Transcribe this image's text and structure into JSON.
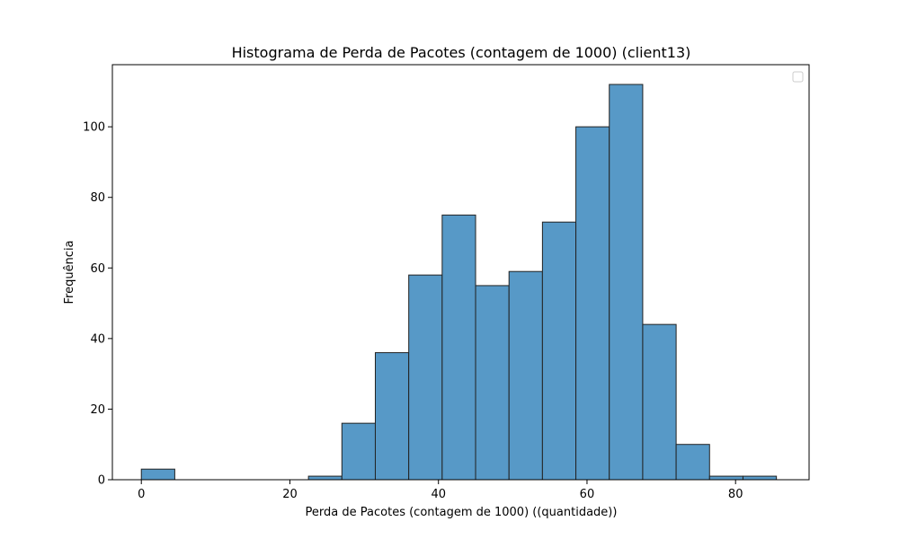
{
  "chart_data": {
    "type": "bar",
    "title": "Histograma de Perda de Pacotes (contagem de 1000) (client13)",
    "xlabel": "Perda de Pacotes (contagem de 1000) ((quantidade))",
    "ylabel": "Frequência",
    "xlim": [
      -3.9,
      89.9
    ],
    "ylim": [
      0,
      117.6
    ],
    "x_ticks": [
      0,
      20,
      40,
      60,
      80
    ],
    "y_ticks": [
      0,
      20,
      40,
      60,
      80,
      100
    ],
    "grid": false,
    "legend": "top-right (empty)",
    "bar_color": "#5799c7",
    "edge_color": "#222222",
    "bins": [
      {
        "start": 0.0,
        "end": 4.5,
        "count": 3
      },
      {
        "start": 4.5,
        "end": 9.0,
        "count": 0
      },
      {
        "start": 9.0,
        "end": 13.5,
        "count": 0
      },
      {
        "start": 13.5,
        "end": 18.0,
        "count": 0
      },
      {
        "start": 18.0,
        "end": 22.5,
        "count": 0
      },
      {
        "start": 22.5,
        "end": 27.0,
        "count": 1
      },
      {
        "start": 27.0,
        "end": 31.5,
        "count": 16
      },
      {
        "start": 31.5,
        "end": 36.0,
        "count": 36
      },
      {
        "start": 36.0,
        "end": 40.5,
        "count": 58
      },
      {
        "start": 40.5,
        "end": 45.0,
        "count": 75
      },
      {
        "start": 45.0,
        "end": 49.5,
        "count": 55
      },
      {
        "start": 49.5,
        "end": 54.0,
        "count": 59
      },
      {
        "start": 54.0,
        "end": 58.5,
        "count": 73
      },
      {
        "start": 58.5,
        "end": 63.0,
        "count": 100
      },
      {
        "start": 63.0,
        "end": 67.5,
        "count": 112
      },
      {
        "start": 67.5,
        "end": 72.0,
        "count": 44
      },
      {
        "start": 72.0,
        "end": 76.5,
        "count": 10
      },
      {
        "start": 76.5,
        "end": 81.0,
        "count": 1
      },
      {
        "start": 81.0,
        "end": 85.5,
        "count": 1
      }
    ]
  }
}
